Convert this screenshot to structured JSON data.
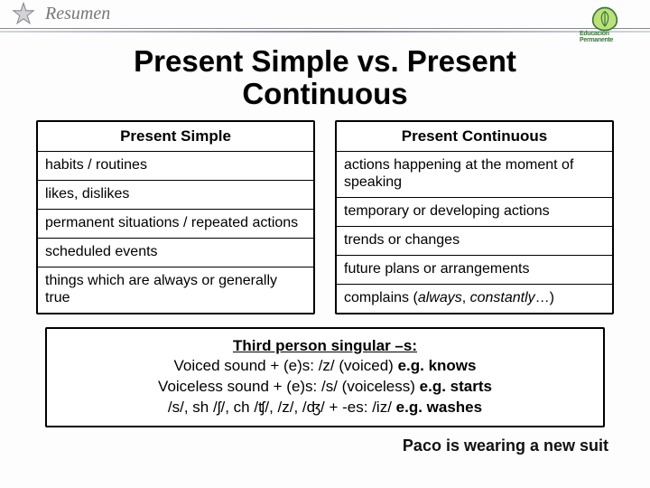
{
  "header": {
    "label": "Resumen",
    "logo_text": "Educación Permanente"
  },
  "title": "Present Simple vs. Present\nContinuous",
  "tables": {
    "left": {
      "header": "Present Simple",
      "rows": [
        "habits / routines",
        "likes, dislikes",
        "permanent situations / repeated actions",
        "scheduled events",
        "things which are always or generally true"
      ]
    },
    "right": {
      "header": "Present Continuous",
      "rows": [
        "actions happening at the moment of speaking",
        "temporary or developing actions",
        "trends or changes",
        "future plans or arrangements",
        "complains (always, constantly…)"
      ]
    }
  },
  "note": {
    "line1": "Third person singular –s:",
    "line2_a": "Voiced sound + (e)s: /z/ (voiced) ",
    "line2_b": "e.g. knows",
    "line3_a": "Voiceless sound + (e)s: /s/ (voiceless) ",
    "line3_b": "e.g. starts",
    "line4_a": "/s/, sh /ʃ/, ch /ʧ/, /z/, /ʤ/ + -es: /iz/ ",
    "line4_b": "e.g. washes"
  },
  "caption": "Paco is wearing a new suit",
  "colors": {
    "header_text": "#777777",
    "border": "#000000",
    "accent_green": "#3a7a3a"
  }
}
